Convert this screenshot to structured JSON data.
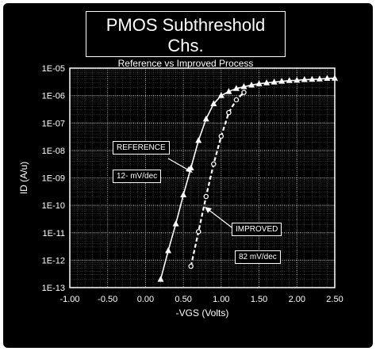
{
  "chart_data": {
    "type": "scatter",
    "title": "PMOS Subthreshold Chs.",
    "subtitle": "Reference vs Improved Process",
    "xlabel": "-VGS   (Volts)",
    "ylabel": "ID   (A/u)",
    "xlim": [
      -1.0,
      2.5
    ],
    "ylim_log10": [
      -13,
      -5
    ],
    "y_scale": "log",
    "grid": true,
    "x_ticks": [
      "-1.00",
      "-0.50",
      "0.00",
      "0.50",
      "1.00",
      "1.50",
      "2.00",
      "2.50"
    ],
    "y_ticks": [
      "1E-05",
      "1E-06",
      "1E-07",
      "1E-08",
      "1E-09",
      "1E-10",
      "1E-11",
      "1E-12",
      "1E-13"
    ],
    "series": [
      {
        "name": "REFERENCE",
        "marker": "triangle",
        "line": "solid",
        "x": [
          0.2,
          0.3,
          0.4,
          0.5,
          0.6,
          0.7,
          0.8,
          0.9,
          1.0,
          1.1,
          1.2,
          1.3,
          1.4,
          1.5,
          1.6,
          1.7,
          1.8,
          1.9,
          2.0,
          2.1,
          2.2,
          2.3,
          2.4,
          2.5
        ],
        "y": [
          2e-13,
          2.2e-12,
          2.1e-11,
          2.4e-10,
          2.3e-09,
          2.3e-08,
          1.4e-07,
          5e-07,
          1e-06,
          1.4e-06,
          1.8e-06,
          2.1e-06,
          2.4e-06,
          2.7e-06,
          2.9e-06,
          3.1e-06,
          3.3e-06,
          3.5e-06,
          3.6e-06,
          3.8e-06,
          3.9e-06,
          4e-06,
          4.2e-06,
          4.3e-06
        ]
      },
      {
        "name": "IMPROVED",
        "marker": "circle",
        "line": "dashed",
        "x": [
          0.6,
          0.7,
          0.8,
          0.9,
          1.0,
          1.1,
          1.2,
          1.3
        ],
        "y": [
          6e-13,
          1.1e-11,
          2.1e-10,
          3.2e-09,
          3.3e-08,
          2.4e-07,
          7e-07,
          1.3e-06
        ]
      }
    ],
    "annotations": [
      {
        "label": "REFERENCE",
        "slope": "12- mV/dec"
      },
      {
        "label": "IMPROVED",
        "slope": "82 mV/dec"
      }
    ]
  }
}
